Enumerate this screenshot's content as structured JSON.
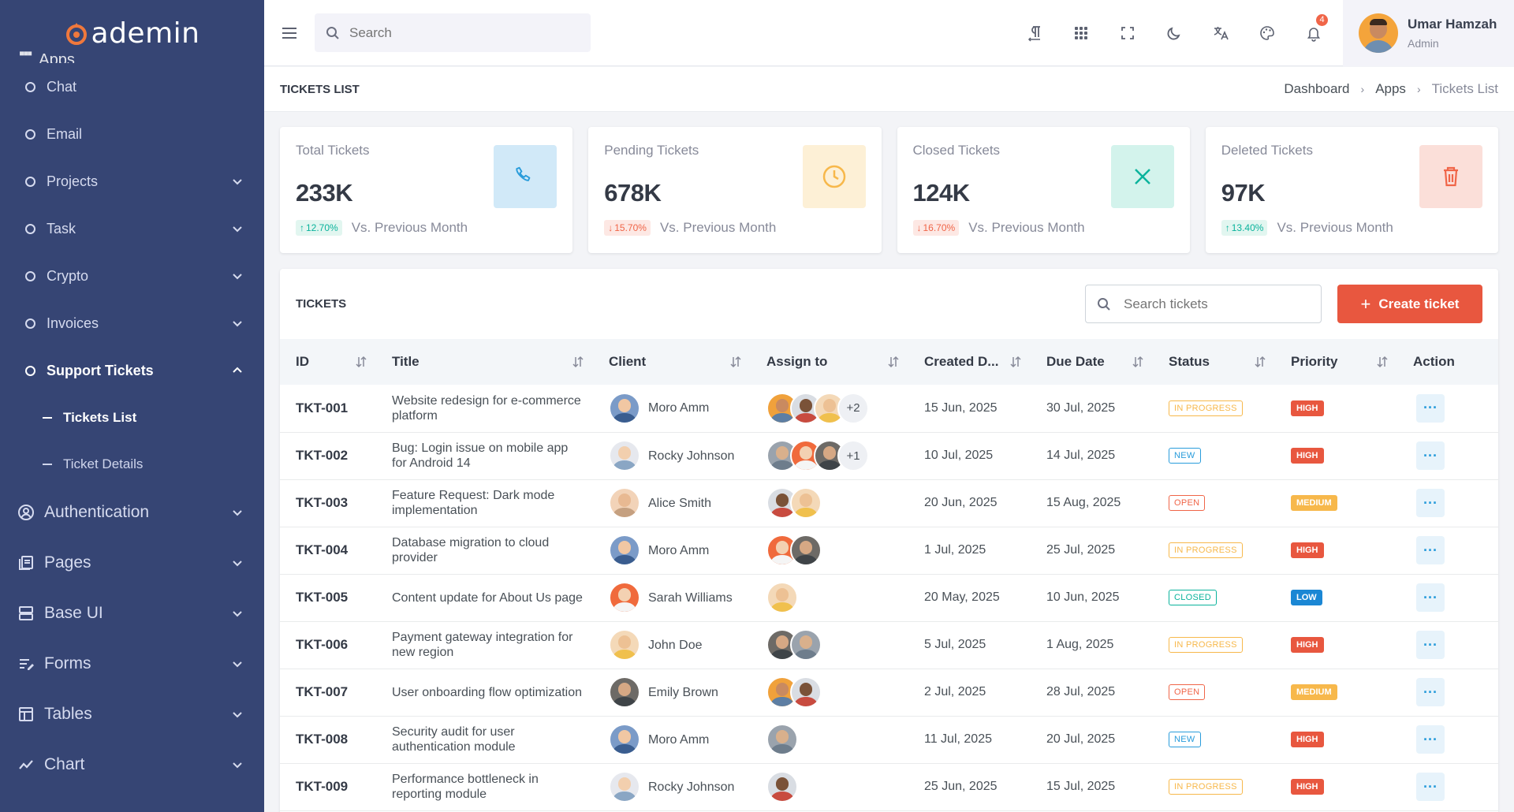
{
  "brand": {
    "name": "ademin"
  },
  "sidebar": {
    "cut_label": "Apps",
    "sub_items": [
      {
        "label": "Chat",
        "chevron": false
      },
      {
        "label": "Email",
        "chevron": false
      },
      {
        "label": "Projects",
        "chevron": true
      },
      {
        "label": "Task",
        "chevron": true
      },
      {
        "label": "Crypto",
        "chevron": true
      },
      {
        "label": "Invoices",
        "chevron": true
      }
    ],
    "support": {
      "label": "Support Tickets"
    },
    "leaves": [
      {
        "label": "Tickets List"
      },
      {
        "label": "Ticket Details"
      }
    ],
    "main_items": [
      {
        "label": "Authentication",
        "icon": "user-circle-icon"
      },
      {
        "label": "Pages",
        "icon": "pages-icon"
      },
      {
        "label": "Base UI",
        "icon": "base-ui-icon"
      },
      {
        "label": "Forms",
        "icon": "forms-icon"
      },
      {
        "label": "Tables",
        "icon": "table-icon"
      },
      {
        "label": "Chart",
        "icon": "chart-icon"
      }
    ]
  },
  "topbar": {
    "search_placeholder": "Search",
    "notification_count": "4",
    "user": {
      "name": "Umar Hamzah",
      "role": "Admin"
    }
  },
  "titlebar": {
    "title": "TICKETS LIST",
    "breadcrumbs": [
      "Dashboard",
      "Apps",
      "Tickets List"
    ]
  },
  "stats": [
    {
      "label": "Total Tickets",
      "value": "233K",
      "change": "12.70%",
      "direction": "up",
      "note": "Vs. Previous Month",
      "icon": "phone-icon",
      "bg": "#d1e9f8",
      "fg": "#299cdb"
    },
    {
      "label": "Pending Tickets",
      "value": "678K",
      "change": "15.70%",
      "direction": "down",
      "note": "Vs. Previous Month",
      "icon": "clock-icon",
      "bg": "#fdf0d6",
      "fg": "#f7b84b"
    },
    {
      "label": "Closed Tickets",
      "value": "124K",
      "change": "16.70%",
      "direction": "down",
      "note": "Vs. Previous Month",
      "icon": "close-icon",
      "bg": "#d3f3ec",
      "fg": "#0ab39c"
    },
    {
      "label": "Deleted Tickets",
      "value": "97K",
      "change": "13.40%",
      "direction": "up",
      "note": "Vs. Previous Month",
      "icon": "trash-icon",
      "bg": "#fbdfd9",
      "fg": "#f06548"
    }
  ],
  "tickets": {
    "title": "TICKETS",
    "search_placeholder": "Search tickets",
    "create_label": "Create ticket",
    "columns": [
      "ID",
      "Title",
      "Client",
      "Assign to",
      "Created D...",
      "Due Date",
      "Status",
      "Priority",
      "Action"
    ],
    "rows": [
      {
        "id": "TKT-001",
        "title": "Website redesign for e-commerce platform",
        "client": "Moro Amm",
        "assignees": 3,
        "extra": "+2",
        "created": "15 Jun, 2025",
        "due": "30 Jul, 2025",
        "status": "IN PROGRESS",
        "priority": "HIGH"
      },
      {
        "id": "TKT-002",
        "title": "Bug: Login issue on mobile app for Android 14",
        "client": "Rocky Johnson",
        "assignees": 3,
        "extra": "+1",
        "created": "10 Jul, 2025",
        "due": "14 Jul, 2025",
        "status": "NEW",
        "priority": "HIGH"
      },
      {
        "id": "TKT-003",
        "title": "Feature Request: Dark mode implementation",
        "client": "Alice Smith",
        "assignees": 2,
        "extra": "",
        "created": "20 Jun, 2025",
        "due": "15 Aug, 2025",
        "status": "OPEN",
        "priority": "MEDIUM"
      },
      {
        "id": "TKT-004",
        "title": "Database migration to cloud provider",
        "client": "Moro Amm",
        "assignees": 2,
        "extra": "",
        "created": "1 Jul, 2025",
        "due": "25 Jul, 2025",
        "status": "IN PROGRESS",
        "priority": "HIGH"
      },
      {
        "id": "TKT-005",
        "title": "Content update for About Us page",
        "client": "Sarah Williams",
        "assignees": 1,
        "extra": "",
        "created": "20 May, 2025",
        "due": "10 Jun, 2025",
        "status": "CLOSED",
        "priority": "LOW"
      },
      {
        "id": "TKT-006",
        "title": "Payment gateway integration for new region",
        "client": "John Doe",
        "assignees": 2,
        "extra": "",
        "created": "5 Jul, 2025",
        "due": "1 Aug, 2025",
        "status": "IN PROGRESS",
        "priority": "HIGH"
      },
      {
        "id": "TKT-007",
        "title": "User onboarding flow optimization",
        "client": "Emily Brown",
        "assignees": 2,
        "extra": "",
        "created": "2 Jul, 2025",
        "due": "28 Jul, 2025",
        "status": "OPEN",
        "priority": "MEDIUM"
      },
      {
        "id": "TKT-008",
        "title": "Security audit for user authentication module",
        "client": "Moro Amm",
        "assignees": 1,
        "extra": "",
        "created": "11 Jul, 2025",
        "due": "20 Jul, 2025",
        "status": "NEW",
        "priority": "HIGH"
      },
      {
        "id": "TKT-009",
        "title": "Performance bottleneck in reporting module",
        "client": "Rocky Johnson",
        "assignees": 1,
        "extra": "",
        "created": "25 Jun, 2025",
        "due": "15 Jul, 2025",
        "status": "IN PROGRESS",
        "priority": "HIGH"
      }
    ]
  }
}
